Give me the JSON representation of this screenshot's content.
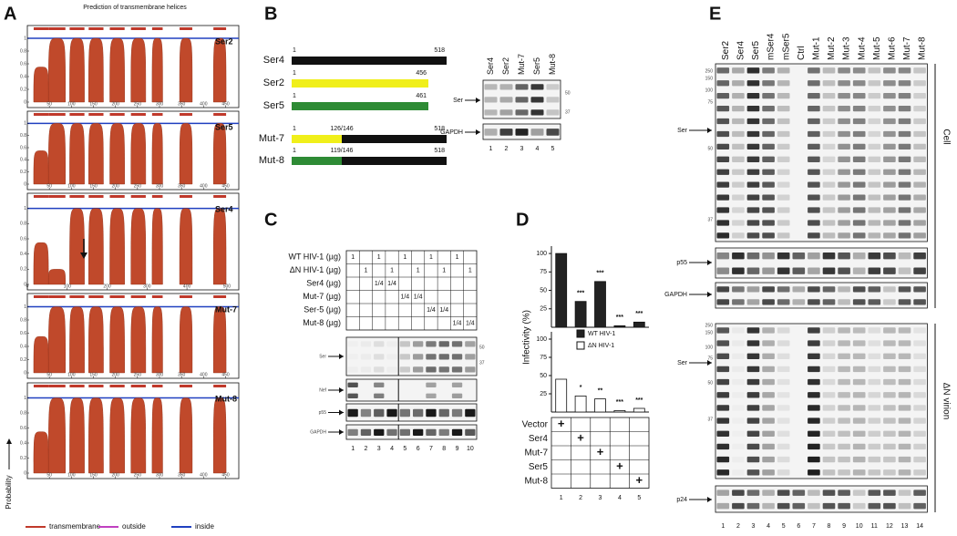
{
  "panels": [
    "A",
    "B",
    "C",
    "D",
    "E"
  ],
  "panel_a": {
    "title": "Prediction of transmembrane helices",
    "y_label": "Probability",
    "y_lim": [
      0,
      1.2
    ],
    "y_ticks": [
      0,
      0.2,
      0.4,
      0.6,
      0.8,
      1
    ],
    "plots": [
      {
        "name": "Ser2",
        "x_lim": [
          0,
          480
        ],
        "x_ticks": [
          50,
          100,
          150,
          200,
          250,
          300,
          350,
          400,
          450
        ]
      },
      {
        "name": "Ser5",
        "x_lim": [
          0,
          480
        ],
        "x_ticks": [
          50,
          100,
          150,
          200,
          250,
          300,
          350,
          400,
          450
        ]
      },
      {
        "name": "Ser4",
        "x_lim": [
          0,
          530
        ],
        "x_ticks": [
          0,
          100,
          200,
          300,
          400,
          500
        ]
      },
      {
        "name": "Mut-7",
        "x_lim": [
          0,
          480
        ],
        "x_ticks": [
          50,
          100,
          150,
          200,
          250,
          300,
          350,
          400,
          450
        ]
      },
      {
        "name": "Mut-8",
        "x_lim": [
          0,
          480
        ],
        "x_ticks": [
          50,
          100,
          150,
          200,
          250,
          300,
          350,
          400,
          450
        ]
      }
    ],
    "legend": [
      {
        "name": "transmembrane",
        "color": "#c0392b"
      },
      {
        "name": "outside",
        "color": "#c040c0"
      },
      {
        "name": "inside",
        "color": "#2040c0"
      }
    ]
  },
  "panel_b": {
    "constructs": [
      {
        "name": "Ser4",
        "start": 1,
        "end": 518,
        "color": "#111111"
      },
      {
        "name": "Ser2",
        "start": 1,
        "end": 456,
        "color": "#f0ef1a"
      },
      {
        "name": "Ser5",
        "start": 1,
        "end": 461,
        "color": "#2e8b35"
      },
      {
        "name": "Mut-7",
        "start": 1,
        "junction": "126/146",
        "end": 518,
        "color": "#f0ef1a"
      },
      {
        "name": "Mut-8",
        "start": 1,
        "junction": "119/146",
        "end": 518,
        "color": "#2e8b35"
      }
    ],
    "blot": {
      "lanes": [
        "Ser4",
        "Ser2",
        "Mut-7",
        "Ser5",
        "Mut-8"
      ],
      "rows": [
        "Ser",
        "GAPDH"
      ],
      "markers": [
        50,
        37
      ],
      "lane_numbers": [
        1,
        2,
        3,
        4,
        5
      ]
    }
  },
  "panel_c": {
    "table": [
      {
        "label": "WT HIV-1 (µg)",
        "cells": [
          1,
          null,
          1,
          null,
          1,
          null,
          1,
          null,
          1,
          null
        ]
      },
      {
        "label": "ΔN HIV-1 (µg)",
        "cells": [
          null,
          1,
          null,
          1,
          null,
          1,
          null,
          1,
          null,
          1
        ]
      },
      {
        "label": "Ser4 (µg)",
        "cells": [
          null,
          null,
          "1/4",
          "1/4",
          null,
          null,
          null,
          null,
          null,
          null
        ]
      },
      {
        "label": "Mut-7 (µg)",
        "cells": [
          null,
          null,
          null,
          null,
          "1/4",
          "1/4",
          null,
          null,
          null,
          null
        ]
      },
      {
        "label": "Ser-5 (µg)",
        "cells": [
          null,
          null,
          null,
          null,
          null,
          null,
          "1/4",
          "1/4",
          null,
          null
        ]
      },
      {
        "label": "Mut-8 (µg)",
        "cells": [
          null,
          null,
          null,
          null,
          null,
          null,
          null,
          null,
          "1/4",
          "1/4"
        ]
      }
    ],
    "blot_rows": [
      "Ser",
      "Nef",
      "p55",
      "GAPDH"
    ],
    "markers": [
      50,
      37
    ],
    "lane_numbers": [
      1,
      2,
      3,
      4,
      5,
      6,
      7,
      8,
      9,
      10
    ]
  },
  "panel_d": {
    "y_label": "Infectivity (%)",
    "top": {
      "y_lim": [
        0,
        110
      ],
      "y_ticks": [
        25,
        50,
        75,
        100
      ],
      "color": "#222222",
      "values": [
        100,
        35,
        62,
        2,
        7
      ],
      "significance": [
        null,
        "***",
        "***",
        "***",
        "***"
      ]
    },
    "bottom": {
      "y_lim": [
        0,
        110
      ],
      "y_ticks": [
        25,
        50,
        75,
        100
      ],
      "color": "#ffffff",
      "values": [
        45,
        22,
        18,
        2,
        5
      ],
      "significance": [
        null,
        "*",
        "**",
        "***",
        "***"
      ]
    },
    "legend": [
      {
        "name": "WT HIV-1",
        "color": "#222222"
      },
      {
        "name": "ΔN HIV-1",
        "color": "#ffffff"
      }
    ],
    "table": [
      {
        "label": "Vector",
        "cells": [
          "+",
          null,
          null,
          null,
          null
        ]
      },
      {
        "label": "Ser4",
        "cells": [
          null,
          "+",
          null,
          null,
          null
        ]
      },
      {
        "label": "Mut-7",
        "cells": [
          null,
          null,
          "+",
          null,
          null
        ]
      },
      {
        "label": "Ser5",
        "cells": [
          null,
          null,
          null,
          "+",
          null
        ]
      },
      {
        "label": "Mut-8",
        "cells": [
          null,
          null,
          null,
          null,
          "+"
        ]
      }
    ],
    "lane_numbers": [
      1,
      2,
      3,
      4,
      5
    ]
  },
  "panel_e": {
    "lanes": [
      "Ser2",
      "Ser4",
      "Ser5",
      "mSer4",
      "mSer5",
      "Ctrl",
      "Mut-1",
      "Mut-2",
      "Mut-3",
      "Mut-4",
      "Mut-5",
      "Mut-6",
      "Mut-7",
      "Mut-8"
    ],
    "cell": {
      "label": "Cell",
      "rows": [
        "Ser",
        "p55",
        "GAPDH"
      ],
      "markers": [
        250,
        150,
        100,
        75,
        50,
        37
      ]
    },
    "virion": {
      "label": "ΔN virion",
      "rows": [
        "Ser",
        "p24"
      ],
      "markers": [
        250,
        150,
        100,
        75,
        50,
        37
      ]
    },
    "lane_numbers": [
      1,
      2,
      3,
      4,
      5,
      6,
      7,
      8,
      9,
      10,
      11,
      12,
      13,
      14
    ]
  }
}
